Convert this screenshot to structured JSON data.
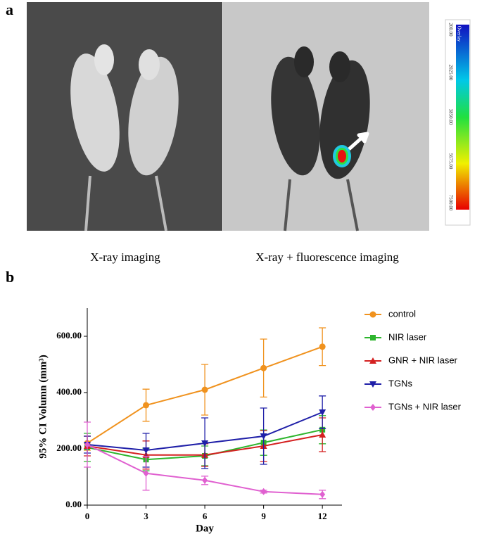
{
  "panel_a": {
    "label": "a",
    "left_caption": "X-ray imaging",
    "right_caption": "X-ray + fluorescence imaging",
    "colorbar": {
      "title": "Overlay",
      "labels": [
        "200.00",
        "2025.00",
        "3850.00",
        "5675.00",
        "7500.00"
      ]
    }
  },
  "chart_data": {
    "type": "line",
    "panel_label": "b",
    "x_label": "Day",
    "y_label": "95% CI Volumn (mm³)",
    "x": [
      0,
      3,
      6,
      9,
      12
    ],
    "series": [
      {
        "name": "control",
        "color": "#f0921e",
        "marker": "circle",
        "values": [
          220,
          355,
          410,
          487,
          563
        ],
        "errors": [
          25,
          57,
          90,
          103,
          67
        ]
      },
      {
        "name": "NIR laser",
        "color": "#2db52d",
        "marker": "square",
        "values": [
          205,
          162,
          175,
          222,
          268
        ],
        "errors": [
          50,
          40,
          35,
          45,
          50
        ]
      },
      {
        "name": "GNR + NIR laser",
        "color": "#d42020",
        "marker": "triangle-up",
        "values": [
          210,
          178,
          178,
          210,
          250
        ],
        "errors": [
          35,
          50,
          40,
          55,
          60
        ]
      },
      {
        "name": "TGNs",
        "color": "#1f1fa8",
        "marker": "triangle-down",
        "values": [
          215,
          195,
          220,
          245,
          330
        ],
        "errors": [
          30,
          60,
          90,
          100,
          58
        ]
      },
      {
        "name": "TGNs + NIR laser",
        "color": "#e060d0",
        "marker": "diamond",
        "values": [
          215,
          113,
          88,
          48,
          38
        ],
        "errors": [
          80,
          60,
          15,
          5,
          15
        ]
      }
    ],
    "xlim": [
      0,
      13
    ],
    "xticks": [
      0,
      3,
      6,
      9,
      12
    ],
    "ylim": [
      0,
      700
    ],
    "yticks": [
      {
        "value": 0,
        "label": "0.00"
      },
      {
        "value": 200,
        "label": "200.00"
      },
      {
        "value": 400,
        "label": "400.00"
      },
      {
        "value": 600,
        "label": "600.00"
      }
    ],
    "legend": "right"
  }
}
